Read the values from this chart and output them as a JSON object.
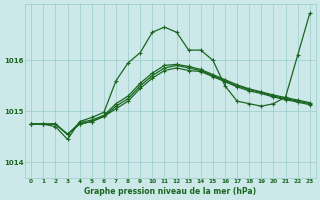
{
  "title": "Graphe pression niveau de la mer (hPa)",
  "bg_color": "#cce8e8",
  "plot_bg_color": "#cce8e8",
  "grid_color": "#99cccc",
  "line_color": "#1a6620",
  "xlim": [
    -0.5,
    23.5
  ],
  "ylim": [
    1013.7,
    1017.1
  ],
  "yticks": [
    1014,
    1015,
    1016
  ],
  "xticks": [
    0,
    1,
    2,
    3,
    4,
    5,
    6,
    7,
    8,
    9,
    10,
    11,
    12,
    13,
    14,
    15,
    16,
    17,
    18,
    19,
    20,
    21,
    22,
    23
  ],
  "series": [
    [
      1014.75,
      1014.75,
      1014.75,
      1014.55,
      1014.75,
      1014.8,
      1014.9,
      1015.1,
      1015.25,
      1015.5,
      1015.7,
      1015.85,
      1015.9,
      1015.85,
      1015.8,
      1015.7,
      1015.6,
      1015.5,
      1015.43,
      1015.37,
      1015.3,
      1015.25,
      1015.2,
      1015.15
    ],
    [
      1014.75,
      1014.75,
      1014.75,
      1014.55,
      1014.75,
      1014.8,
      1014.9,
      1015.05,
      1015.2,
      1015.45,
      1015.65,
      1015.8,
      1015.85,
      1015.8,
      1015.78,
      1015.68,
      1015.58,
      1015.48,
      1015.4,
      1015.35,
      1015.28,
      1015.23,
      1015.18,
      1015.13
    ],
    [
      1014.75,
      1014.75,
      1014.7,
      1014.45,
      1014.8,
      1014.88,
      1014.98,
      1015.6,
      1015.95,
      1016.15,
      1016.55,
      1016.65,
      1016.55,
      1016.2,
      1016.2,
      1016.0,
      1015.5,
      1015.2,
      1015.15,
      1015.1,
      1015.15,
      1015.28,
      1016.1,
      1016.92
    ],
    [
      1014.75,
      1014.75,
      1014.75,
      1014.55,
      1014.78,
      1014.83,
      1014.92,
      1015.15,
      1015.3,
      1015.55,
      1015.75,
      1015.9,
      1015.92,
      1015.88,
      1015.82,
      1015.72,
      1015.62,
      1015.52,
      1015.44,
      1015.38,
      1015.32,
      1015.27,
      1015.22,
      1015.17
    ]
  ]
}
